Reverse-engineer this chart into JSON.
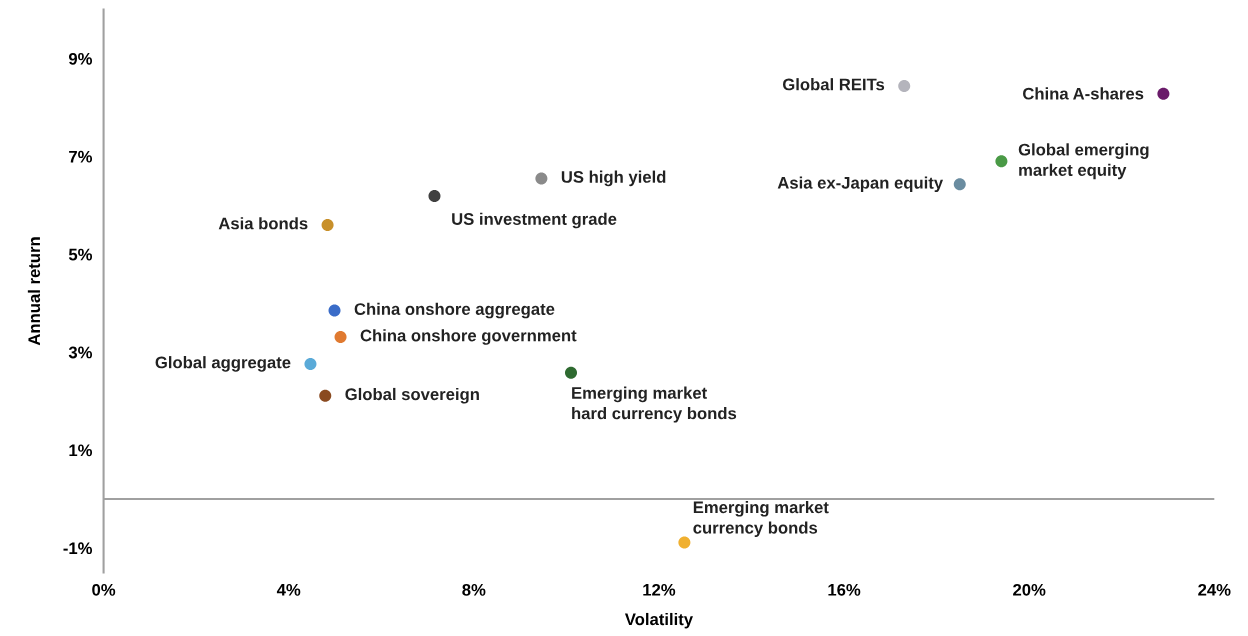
{
  "chart_data": {
    "type": "scatter",
    "xlabel": "Volatility",
    "ylabel": "Annual return",
    "xlim": [
      0,
      24
    ],
    "xticks": [
      {
        "value": 0,
        "label": "0%"
      },
      {
        "value": 4,
        "label": "4%"
      },
      {
        "value": 8,
        "label": "8%"
      },
      {
        "value": 12,
        "label": "12%"
      },
      {
        "value": 16,
        "label": "16%"
      },
      {
        "value": 20,
        "label": "20%"
      },
      {
        "value": 24,
        "label": "24%"
      }
    ],
    "ylim": [
      -1.5,
      10
    ],
    "yticks": [
      {
        "value": -1,
        "label": "-1%"
      },
      {
        "value": 1,
        "label": "1%"
      },
      {
        "value": 3,
        "label": "3%"
      },
      {
        "value": 5,
        "label": "5%"
      },
      {
        "value": 7,
        "label": "7%"
      },
      {
        "value": 9,
        "label": "9%"
      }
    ],
    "grid": false,
    "legend": false,
    "marker": "circle",
    "ref_lines": [
      {
        "axis": "y",
        "value": 0,
        "color": "#a0a0a0"
      }
    ],
    "series": [
      {
        "name": "Global REITs",
        "color": "#b4b4bc",
        "x": [
          17.3
        ],
        "values": [
          8.44
        ]
      },
      {
        "name": "China A-shares",
        "color": "#6a1b6a",
        "x": [
          22.9
        ],
        "values": [
          8.28
        ]
      },
      {
        "name": "Global emerging\nmarket equity",
        "color": "#4a9a46",
        "x": [
          19.4
        ],
        "values": [
          6.9
        ]
      },
      {
        "name": "Asia ex-Japan equity",
        "color": "#6a8ca0",
        "x": [
          18.5
        ],
        "values": [
          6.43
        ]
      },
      {
        "name": "US high yield",
        "color": "#8a8a8a",
        "x": [
          9.46
        ],
        "values": [
          6.55
        ]
      },
      {
        "name": "US investment grade",
        "color": "#404040",
        "x": [
          7.15
        ],
        "values": [
          6.19
        ]
      },
      {
        "name": "Asia bonds",
        "color": "#c8902a",
        "x": [
          4.84
        ],
        "values": [
          5.6
        ]
      },
      {
        "name": "China onshore aggregate",
        "color": "#3a6cc8",
        "x": [
          4.99
        ],
        "values": [
          3.85
        ]
      },
      {
        "name": "China onshore government",
        "color": "#e07a30",
        "x": [
          5.12
        ],
        "values": [
          3.31
        ]
      },
      {
        "name": "Global aggregate",
        "color": "#5aaad8",
        "x": [
          4.47
        ],
        "values": [
          2.76
        ]
      },
      {
        "name": "Global sovereign",
        "color": "#8a4a20",
        "x": [
          4.79
        ],
        "values": [
          2.11
        ]
      },
      {
        "name": "Emerging market\nhard currency bonds",
        "color": "#2e6a30",
        "x": [
          10.1
        ],
        "values": [
          2.58
        ]
      },
      {
        "name": "Emerging market\ncurrency bonds",
        "color": "#f0b030",
        "x": [
          12.55
        ],
        "values": [
          -0.89
        ]
      }
    ]
  }
}
